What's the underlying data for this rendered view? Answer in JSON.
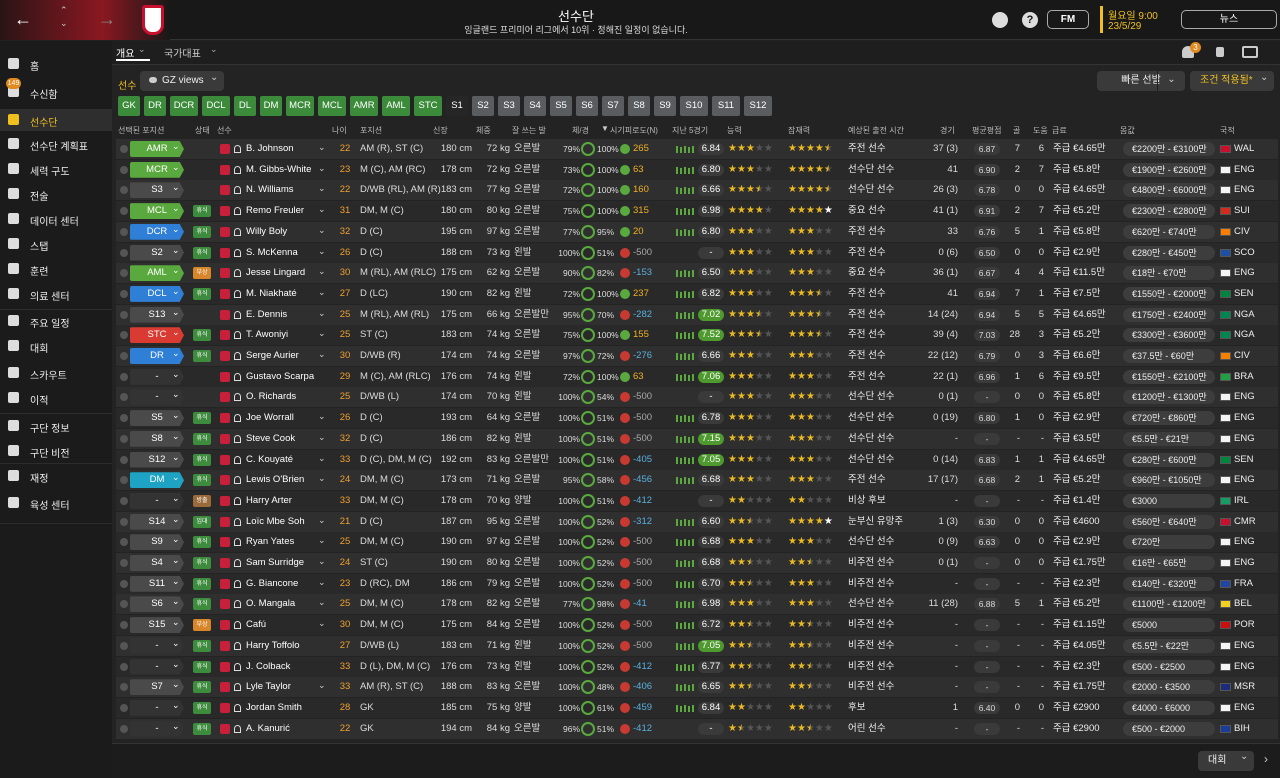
{
  "header": {
    "title": "선수단",
    "subtitle": "잉글랜드 프리미어 리그에서 10위 · 정해진 일정이 없습니다.",
    "day_time": "월요일 9:00",
    "date": "23/5/29",
    "fm_button": "FM",
    "news_button": "뉴스"
  },
  "sidebar": {
    "inbox_badge": "149",
    "items": [
      "홈",
      "수신함",
      "선수단",
      "선수단 계획표",
      "세력 구도",
      "전술",
      "데이터 센터",
      "스탭",
      "훈련",
      "의료 센터",
      "주요 일정",
      "대회",
      "스카우트",
      "이적",
      "구단 정보",
      "구단 비전",
      "재정",
      "육성 센터"
    ]
  },
  "tabs": [
    "개요",
    "국가대표"
  ],
  "notification_badge": "3",
  "toolbar": {
    "label": "선수",
    "view": "GZ views",
    "quick_pick": "빠른 선발",
    "filter": "조건 적용됨*"
  },
  "position_filters": [
    "GK",
    "DR",
    "DCR",
    "DCL",
    "DL",
    "DM",
    "MCR",
    "MCL",
    "AMR",
    "AML",
    "STC",
    "S1",
    "S2",
    "S3",
    "S4",
    "S5",
    "S6",
    "S7",
    "S8",
    "S9",
    "S10",
    "S11",
    "S12"
  ],
  "table": {
    "columns": [
      "선택된 포지션",
      "상태",
      "선수",
      "나이",
      "포지션",
      "신장",
      "체중",
      "잘 쓰는 발",
      "체/경",
      "시기피로도(N)",
      "지난 5경기",
      "능력",
      "잠재력",
      "예상된 출전 시간",
      "경기",
      "평균평점",
      "골",
      "도움",
      "급료",
      "몸값",
      "국적"
    ],
    "rows": [
      {
        "pos": "AMR",
        "status": null,
        "name": "B. Johnson",
        "age": "22",
        "position": "AM (R), ST (C)",
        "height": "180 cm",
        "weight": "72 kg",
        "foot": "오른발",
        "cond": "79%",
        "sharp": "100%",
        "fatigue": "265",
        "rating": "6.84",
        "ability": 3,
        "potential": 4.5,
        "role": "주전 선수",
        "apps": "37 (3)",
        "avg": "6.87",
        "goals": "7",
        "assists": "6",
        "wage": "주급 €4.65만",
        "value": "€2200만 - €3100만",
        "nat": "WAL"
      },
      {
        "pos": "MCR",
        "status": null,
        "name": "M. Gibbs-White",
        "age": "23",
        "position": "M (C), AM (RC)",
        "height": "178 cm",
        "weight": "72 kg",
        "foot": "오른발",
        "cond": "73%",
        "sharp": "100%",
        "fatigue": "63",
        "rating": "6.80",
        "ability": 3,
        "potential": 4.5,
        "role": "선수단 선수",
        "apps": "41",
        "avg": "6.90",
        "goals": "2",
        "assists": "7",
        "wage": "주급 €5.8만",
        "value": "€1900만 - €2600만",
        "nat": "ENG"
      },
      {
        "pos": "S3",
        "status": null,
        "name": "N. Williams",
        "age": "22",
        "position": "D/WB (RL), AM (R)",
        "height": "183 cm",
        "weight": "77 kg",
        "foot": "오른발",
        "cond": "72%",
        "sharp": "100%",
        "fatigue": "160",
        "rating": "6.66",
        "ability": 3.5,
        "potential": 4.5,
        "role": "선수단 선수",
        "apps": "26 (3)",
        "avg": "6.78",
        "goals": "0",
        "assists": "0",
        "wage": "주급 €4.65만",
        "value": "€4800만 - €6000만",
        "nat": "ENG"
      },
      {
        "pos": "MCL",
        "status": "휴식",
        "name": "Remo Freuler",
        "age": "31",
        "position": "DM, M (C)",
        "height": "180 cm",
        "weight": "80 kg",
        "foot": "오른발",
        "cond": "75%",
        "sharp": "100%",
        "fatigue": "315",
        "rating": "6.98",
        "ability": 4,
        "potential": 4,
        "role": "중요 선수",
        "apps": "41 (1)",
        "avg": "6.91",
        "goals": "2",
        "assists": "7",
        "wage": "주급 €5.2만",
        "value": "€2300만 - €2800만",
        "nat": "SUI"
      },
      {
        "pos": "DCR",
        "status": "휴식",
        "name": "Willy Boly",
        "age": "32",
        "position": "D (C)",
        "height": "195 cm",
        "weight": "97 kg",
        "foot": "오른발",
        "cond": "77%",
        "sharp": "95%",
        "fatigue": "20",
        "rating": "6.80",
        "ability": 3,
        "potential": 3,
        "role": "주전 선수",
        "apps": "33",
        "avg": "6.76",
        "goals": "5",
        "assists": "1",
        "wage": "주급 €5.8만",
        "value": "€620만 - €740만",
        "nat": "CIV"
      },
      {
        "pos": "S2",
        "status": "휴식",
        "name": "S. McKenna",
        "age": "26",
        "position": "D (C)",
        "height": "188 cm",
        "weight": "73 kg",
        "foot": "왼발",
        "cond": "100%",
        "sharp": "51%",
        "fatigue": "-500",
        "rating": "-",
        "ability": 3,
        "potential": 3,
        "role": "주전 선수",
        "apps": "0 (6)",
        "avg": "6.50",
        "goals": "0",
        "assists": "0",
        "wage": "주급 €2.9만",
        "value": "€280만 - €450만",
        "nat": "SCO"
      },
      {
        "pos": "AML",
        "status": "부상",
        "name": "Jesse Lingard",
        "age": "30",
        "position": "M (RL), AM (RLC)",
        "height": "175 cm",
        "weight": "62 kg",
        "foot": "오른발",
        "cond": "90%",
        "sharp": "82%",
        "fatigue": "-153",
        "rating": "6.50",
        "ability": 3,
        "potential": 3,
        "role": "중요 선수",
        "apps": "36 (1)",
        "avg": "6.67",
        "goals": "4",
        "assists": "4",
        "wage": "주급 €11.5만",
        "value": "€18만 - €70만",
        "nat": "ENG"
      },
      {
        "pos": "DCL",
        "status": "휴식",
        "name": "M. Niakhaté",
        "age": "27",
        "position": "D (LC)",
        "height": "190 cm",
        "weight": "82 kg",
        "foot": "왼발",
        "cond": "72%",
        "sharp": "100%",
        "fatigue": "237",
        "rating": "6.82",
        "ability": 3,
        "potential": 3.5,
        "role": "주전 선수",
        "apps": "41",
        "avg": "6.94",
        "goals": "7",
        "assists": "1",
        "wage": "주급 €7.5만",
        "value": "€1550만 - €2000만",
        "nat": "SEN"
      },
      {
        "pos": "S13",
        "status": null,
        "name": "E. Dennis",
        "age": "25",
        "position": "M (RL), AM (RL)",
        "height": "175 cm",
        "weight": "66 kg",
        "foot": "오른발만",
        "cond": "95%",
        "sharp": "70%",
        "fatigue": "-282",
        "rating": "7.02",
        "ability": 3.5,
        "potential": 3.5,
        "role": "주전 선수",
        "apps": "14 (24)",
        "avg": "6.94",
        "goals": "5",
        "assists": "5",
        "wage": "주급 €4.65만",
        "value": "€1750만 - €2400만",
        "nat": "NGA"
      },
      {
        "pos": "STC",
        "status": "휴식",
        "name": "T. Awoniyi",
        "age": "25",
        "position": "ST (C)",
        "height": "183 cm",
        "weight": "74 kg",
        "foot": "오른발",
        "cond": "75%",
        "sharp": "100%",
        "fatigue": "155",
        "rating": "7.52",
        "ability": 3.5,
        "potential": 3.5,
        "role": "주전 선수",
        "apps": "39 (4)",
        "avg": "7.03",
        "goals": "28",
        "assists": "3",
        "wage": "주급 €5.2만",
        "value": "€3300만 - €3600만",
        "nat": "NGA"
      },
      {
        "pos": "DR",
        "status": "휴식",
        "name": "Serge Aurier",
        "age": "30",
        "position": "D/WB (R)",
        "height": "174 cm",
        "weight": "74 kg",
        "foot": "오른발",
        "cond": "97%",
        "sharp": "72%",
        "fatigue": "-276",
        "rating": "6.66",
        "ability": 3,
        "potential": 3,
        "role": "주전 선수",
        "apps": "22 (12)",
        "avg": "6.79",
        "goals": "0",
        "assists": "3",
        "wage": "주급 €6.6만",
        "value": "€37.5만 - €60만",
        "nat": "CIV"
      },
      {
        "pos": "-",
        "status": null,
        "name": "Gustavo Scarpa",
        "age": "29",
        "position": "M (C), AM (RLC)",
        "height": "176 cm",
        "weight": "74 kg",
        "foot": "왼발",
        "cond": "72%",
        "sharp": "100%",
        "fatigue": "63",
        "rating": "7.06",
        "ability": 3,
        "potential": 3,
        "role": "주전 선수",
        "apps": "22 (1)",
        "avg": "6.96",
        "goals": "1",
        "assists": "6",
        "wage": "주급 €9.5만",
        "value": "€1550만 - €2100만",
        "nat": "BRA"
      },
      {
        "pos": "-",
        "status": null,
        "name": "O. Richards",
        "age": "25",
        "position": "D/WB (L)",
        "height": "174 cm",
        "weight": "70 kg",
        "foot": "왼발",
        "cond": "100%",
        "sharp": "54%",
        "fatigue": "-500",
        "rating": "-",
        "ability": 3,
        "potential": 3,
        "role": "선수단 선수",
        "apps": "0 (1)",
        "avg": "-",
        "goals": "0",
        "assists": "0",
        "wage": "주급 €5.8만",
        "value": "€1200만 - €1300만",
        "nat": "ENG"
      },
      {
        "pos": "S5",
        "status": "휴식",
        "name": "Joe Worrall",
        "age": "26",
        "position": "D (C)",
        "height": "193 cm",
        "weight": "64 kg",
        "foot": "오른발",
        "cond": "100%",
        "sharp": "51%",
        "fatigue": "-500",
        "rating": "6.78",
        "ability": 3,
        "potential": 3,
        "role": "선수단 선수",
        "apps": "0 (19)",
        "avg": "6.80",
        "goals": "1",
        "assists": "0",
        "wage": "주급 €2.9만",
        "value": "€720만 - €860만",
        "nat": "ENG"
      },
      {
        "pos": "S8",
        "status": "휴식",
        "name": "Steve Cook",
        "age": "32",
        "position": "D (C)",
        "height": "186 cm",
        "weight": "82 kg",
        "foot": "왼발",
        "cond": "100%",
        "sharp": "51%",
        "fatigue": "-500",
        "rating": "7.15",
        "ability": 3,
        "potential": 3,
        "role": "선수단 선수",
        "apps": "-",
        "avg": "-",
        "goals": "-",
        "assists": "-",
        "wage": "주급 €3.5만",
        "value": "€5.5만 - €21만",
        "nat": "ENG"
      },
      {
        "pos": "S12",
        "status": "휴식",
        "name": "C. Kouyaté",
        "age": "33",
        "position": "D (C), DM, M (C)",
        "height": "192 cm",
        "weight": "83 kg",
        "foot": "오른발만",
        "cond": "100%",
        "sharp": "51%",
        "fatigue": "-405",
        "rating": "7.05",
        "ability": 3,
        "potential": 3,
        "role": "선수단 선수",
        "apps": "0 (14)",
        "avg": "6.83",
        "goals": "1",
        "assists": "1",
        "wage": "주급 €4.65만",
        "value": "€280만 - €600만",
        "nat": "SEN"
      },
      {
        "pos": "DM",
        "status": "휴식",
        "name": "Lewis O'Brien",
        "age": "24",
        "position": "DM, M (C)",
        "height": "173 cm",
        "weight": "71 kg",
        "foot": "오른발",
        "cond": "95%",
        "sharp": "58%",
        "fatigue": "-456",
        "rating": "6.68",
        "ability": 3,
        "potential": 3,
        "role": "주전 선수",
        "apps": "17 (17)",
        "avg": "6.68",
        "goals": "2",
        "assists": "1",
        "wage": "주급 €5.2만",
        "value": "€960만 - €1050만",
        "nat": "ENG"
      },
      {
        "pos": "-",
        "status": "방출",
        "name": "Harry Arter",
        "age": "33",
        "position": "DM, M (C)",
        "height": "178 cm",
        "weight": "70 kg",
        "foot": "양발",
        "cond": "100%",
        "sharp": "51%",
        "fatigue": "-412",
        "rating": "-",
        "ability": 2,
        "potential": 2,
        "role": "비상 후보",
        "apps": "-",
        "avg": "-",
        "goals": "-",
        "assists": "-",
        "wage": "주급 €1.4만",
        "value": "€3000",
        "nat": "IRL"
      },
      {
        "pos": "S14",
        "status": "임대",
        "name": "Loïc Mbe Soh",
        "age": "21",
        "position": "D (C)",
        "height": "187 cm",
        "weight": "95 kg",
        "foot": "오른발",
        "cond": "100%",
        "sharp": "52%",
        "fatigue": "-312",
        "rating": "6.60",
        "ability": 2.5,
        "potential": 4,
        "role": "눈부신 유망주",
        "apps": "1 (3)",
        "avg": "6.30",
        "goals": "0",
        "assists": "0",
        "wage": "주급 €4600",
        "value": "€560만 - €640만",
        "nat": "CMR"
      },
      {
        "pos": "S9",
        "status": "휴식",
        "name": "Ryan Yates",
        "age": "25",
        "position": "DM, M (C)",
        "height": "190 cm",
        "weight": "97 kg",
        "foot": "오른발",
        "cond": "100%",
        "sharp": "52%",
        "fatigue": "-500",
        "rating": "6.68",
        "ability": 3,
        "potential": 3,
        "role": "선수단 선수",
        "apps": "0 (9)",
        "avg": "6.63",
        "goals": "0",
        "assists": "0",
        "wage": "주급 €2.9만",
        "value": "€720만",
        "nat": "ENG"
      },
      {
        "pos": "S4",
        "status": "휴식",
        "name": "Sam Surridge",
        "age": "24",
        "position": "ST (C)",
        "height": "190 cm",
        "weight": "80 kg",
        "foot": "오른발",
        "cond": "100%",
        "sharp": "52%",
        "fatigue": "-500",
        "rating": "6.68",
        "ability": 2.5,
        "potential": 2.5,
        "role": "비주전 선수",
        "apps": "0 (1)",
        "avg": "-",
        "goals": "0",
        "assists": "0",
        "wage": "주급 €1.75만",
        "value": "€16만 - €65만",
        "nat": "ENG"
      },
      {
        "pos": "S11",
        "status": "휴식",
        "name": "G. Biancone",
        "age": "23",
        "position": "D (RC), DM",
        "height": "186 cm",
        "weight": "79 kg",
        "foot": "오른발",
        "cond": "100%",
        "sharp": "52%",
        "fatigue": "-500",
        "rating": "6.70",
        "ability": 2.5,
        "potential": 3,
        "role": "비주전 선수",
        "apps": "-",
        "avg": "-",
        "goals": "-",
        "assists": "-",
        "wage": "주급 €2.3만",
        "value": "€140만 - €320만",
        "nat": "FRA"
      },
      {
        "pos": "S6",
        "status": "휴식",
        "name": "O. Mangala",
        "age": "25",
        "position": "DM, M (C)",
        "height": "178 cm",
        "weight": "82 kg",
        "foot": "오른발",
        "cond": "77%",
        "sharp": "98%",
        "fatigue": "-41",
        "rating": "6.98",
        "ability": 3,
        "potential": 3,
        "role": "선수단 선수",
        "apps": "11 (28)",
        "avg": "6.88",
        "goals": "5",
        "assists": "1",
        "wage": "주급 €5.2만",
        "value": "€1100만 - €1200만",
        "nat": "BEL"
      },
      {
        "pos": "S15",
        "status": "부상",
        "name": "Cafú",
        "age": "30",
        "position": "DM, M (C)",
        "height": "175 cm",
        "weight": "84 kg",
        "foot": "오른발",
        "cond": "100%",
        "sharp": "52%",
        "fatigue": "-500",
        "rating": "6.72",
        "ability": 2.5,
        "potential": 2.5,
        "role": "비주전 선수",
        "apps": "-",
        "avg": "-",
        "goals": "-",
        "assists": "-",
        "wage": "주급 €1.15만",
        "value": "€5000",
        "nat": "POR"
      },
      {
        "pos": "-",
        "status": "휴식",
        "name": "Harry Toffolo",
        "age": "27",
        "position": "D/WB (L)",
        "height": "183 cm",
        "weight": "71 kg",
        "foot": "왼발",
        "cond": "100%",
        "sharp": "52%",
        "fatigue": "-500",
        "rating": "7.05",
        "ability": 2.5,
        "potential": 2.5,
        "role": "비주전 선수",
        "apps": "-",
        "avg": "-",
        "goals": "-",
        "assists": "-",
        "wage": "주급 €4.05만",
        "value": "€5.5만 - €22만",
        "nat": "ENG"
      },
      {
        "pos": "-",
        "status": "휴식",
        "name": "J. Colback",
        "age": "33",
        "position": "D (L), DM, M (C)",
        "height": "176 cm",
        "weight": "73 kg",
        "foot": "왼발",
        "cond": "100%",
        "sharp": "52%",
        "fatigue": "-412",
        "rating": "6.77",
        "ability": 2.5,
        "potential": 2.5,
        "role": "비주전 선수",
        "apps": "-",
        "avg": "-",
        "goals": "-",
        "assists": "-",
        "wage": "주급 €2.3만",
        "value": "€500 - €2500",
        "nat": "ENG"
      },
      {
        "pos": "S7",
        "status": "휴식",
        "name": "Lyle Taylor",
        "age": "33",
        "position": "AM (R), ST (C)",
        "height": "188 cm",
        "weight": "83 kg",
        "foot": "오른발",
        "cond": "100%",
        "sharp": "48%",
        "fatigue": "-406",
        "rating": "6.65",
        "ability": 2.5,
        "potential": 2.5,
        "role": "비주전 선수",
        "apps": "-",
        "avg": "-",
        "goals": "-",
        "assists": "-",
        "wage": "주급 €1.75만",
        "value": "€2000 - €3500",
        "nat": "MSR"
      },
      {
        "pos": "-",
        "status": "휴식",
        "name": "Jordan Smith",
        "age": "28",
        "position": "GK",
        "height": "185 cm",
        "weight": "75 kg",
        "foot": "양발",
        "cond": "100%",
        "sharp": "61%",
        "fatigue": "-459",
        "rating": "6.84",
        "ability": 2,
        "potential": 2,
        "role": "후보",
        "apps": "1",
        "avg": "6.40",
        "goals": "0",
        "assists": "0",
        "wage": "주급 €2900",
        "value": "€4000 - €6000",
        "nat": "ENG"
      },
      {
        "pos": "-",
        "status": "휴식",
        "name": "A. Kanurić",
        "age": "22",
        "position": "GK",
        "height": "194 cm",
        "weight": "84 kg",
        "foot": "오른발",
        "cond": "96%",
        "sharp": "51%",
        "fatigue": "-412",
        "rating": "-",
        "ability": 1.5,
        "potential": 2.5,
        "role": "어린 선수",
        "apps": "-",
        "avg": "-",
        "goals": "-",
        "assists": "-",
        "wage": "주급 €2900",
        "value": "€500 - €2000",
        "nat": "BIH"
      }
    ]
  },
  "footer": {
    "competition": "대회"
  }
}
